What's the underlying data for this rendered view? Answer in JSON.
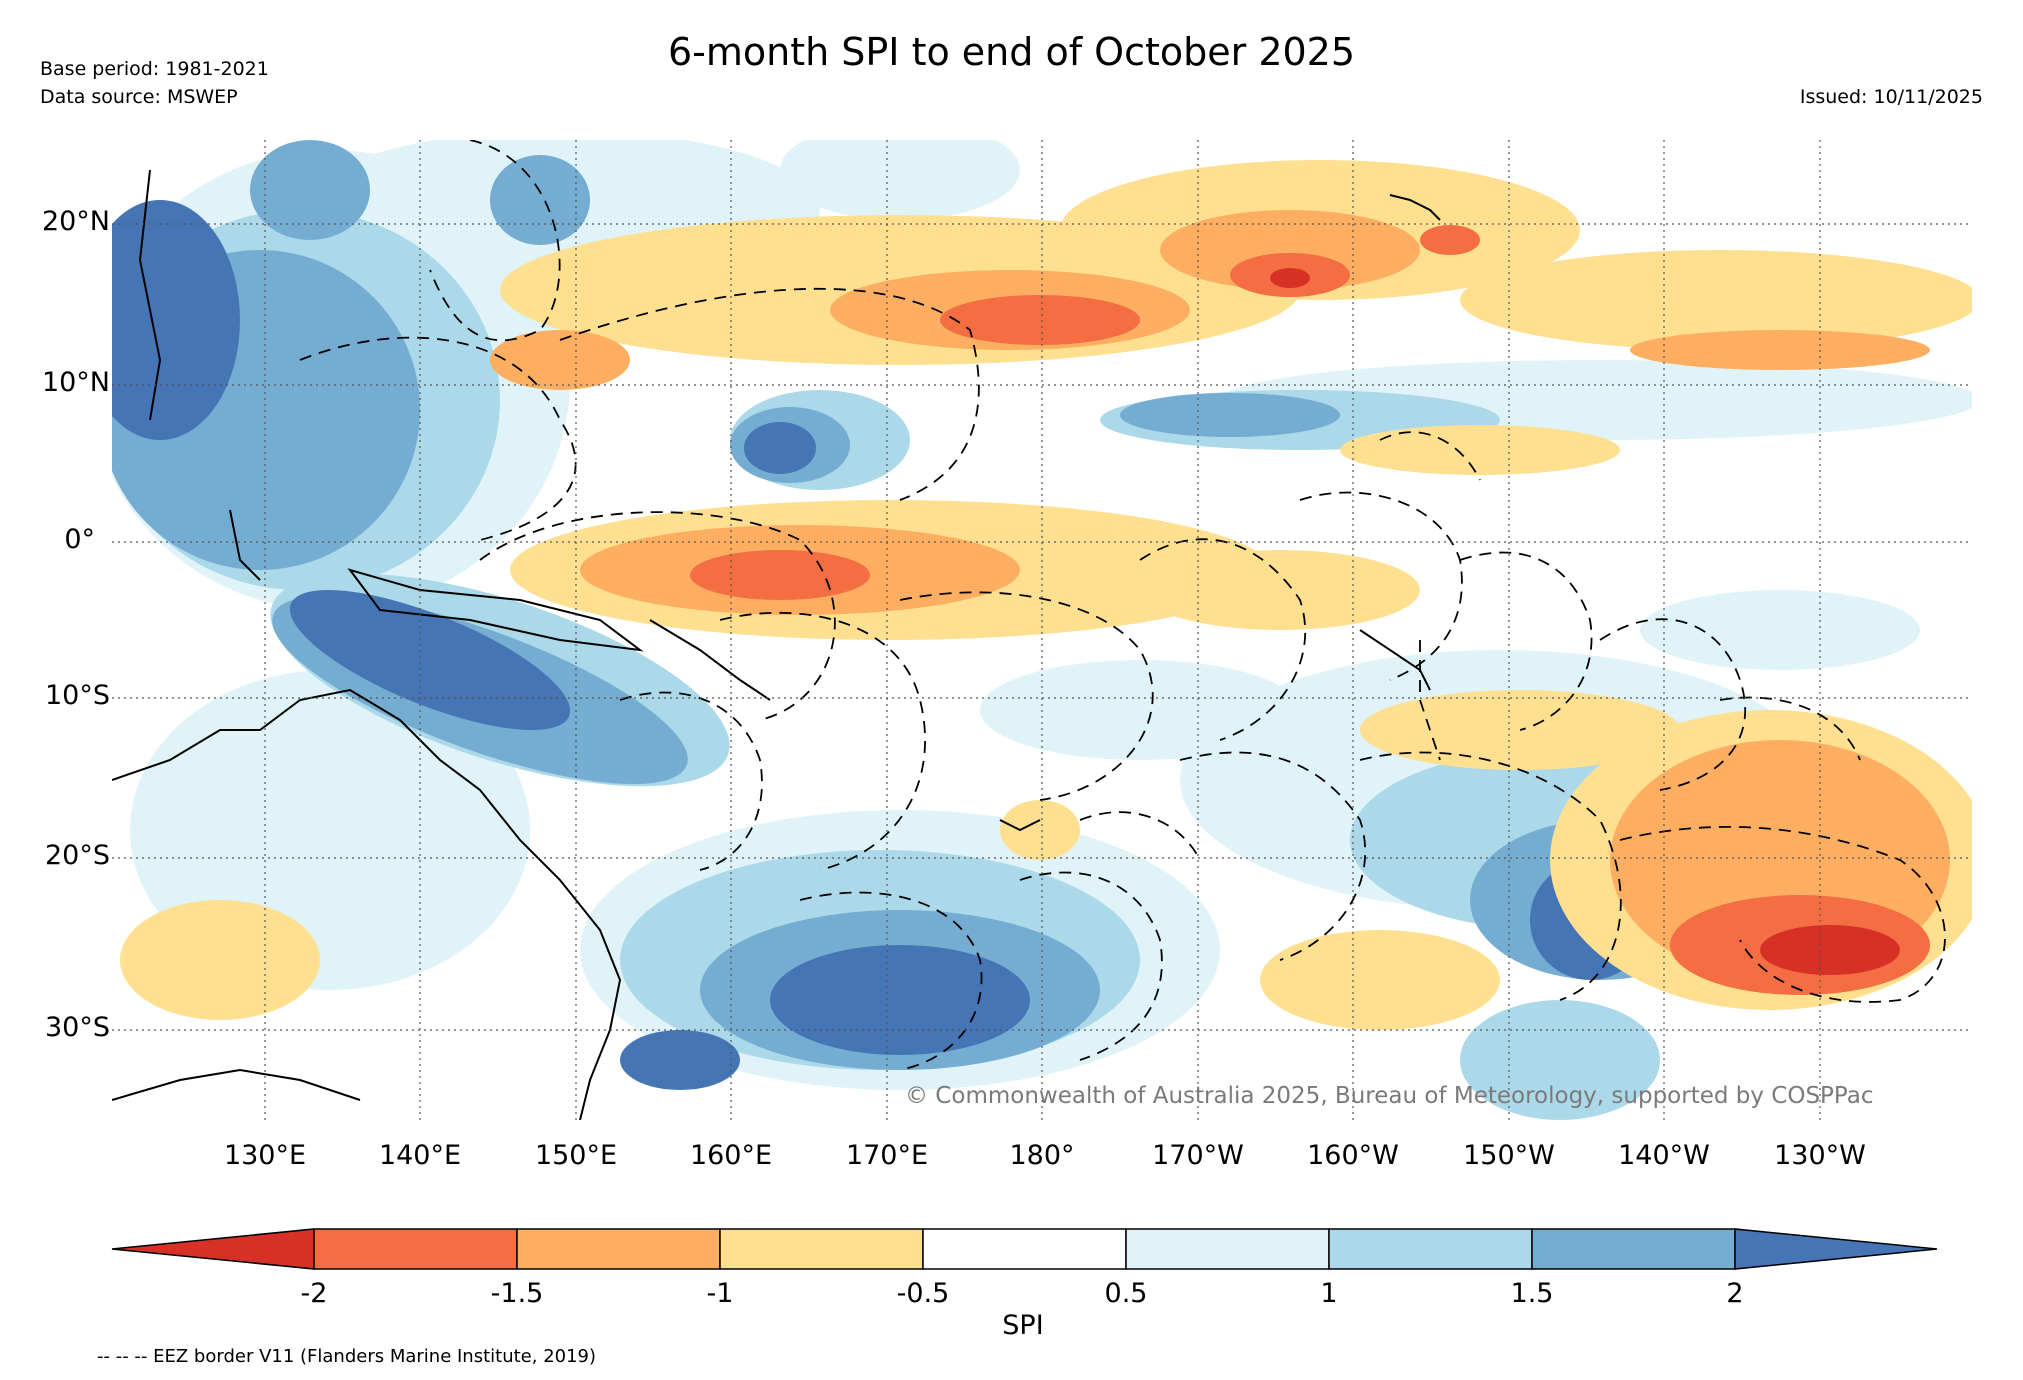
{
  "header": {
    "base_period": "Base period: 1981-2021",
    "data_source": "Data source: MSWEP",
    "title": "6-month SPI to end of October 2025",
    "issued": "Issued: 10/11/2025"
  },
  "axes": {
    "lat_labels": [
      "20°N",
      "10°N",
      "0°",
      "10°S",
      "20°S",
      "30°S"
    ],
    "lon_labels": [
      "130°E",
      "140°E",
      "150°E",
      "160°E",
      "170°E",
      "180°",
      "170°W",
      "160°W",
      "150°W",
      "140°W",
      "130°W"
    ]
  },
  "copyright": "© Commonwealth of Australia 2025, Bureau of Meteorology, supported by COSPPac",
  "colorbar": {
    "label": "SPI",
    "ticks": [
      "-2",
      "-1.5",
      "-1",
      "-0.5",
      "0.5",
      "1",
      "1.5",
      "2"
    ],
    "colors": [
      "#d73027",
      "#f46d43",
      "#fdae61",
      "#fee090",
      "#ffffff",
      "#e0f3f8",
      "#abd9e9",
      "#74add1",
      "#4575b4"
    ]
  },
  "footer": {
    "eez_note": "-- -- -- EEZ border V11 (Flanders Marine Institute, 2019)"
  }
}
